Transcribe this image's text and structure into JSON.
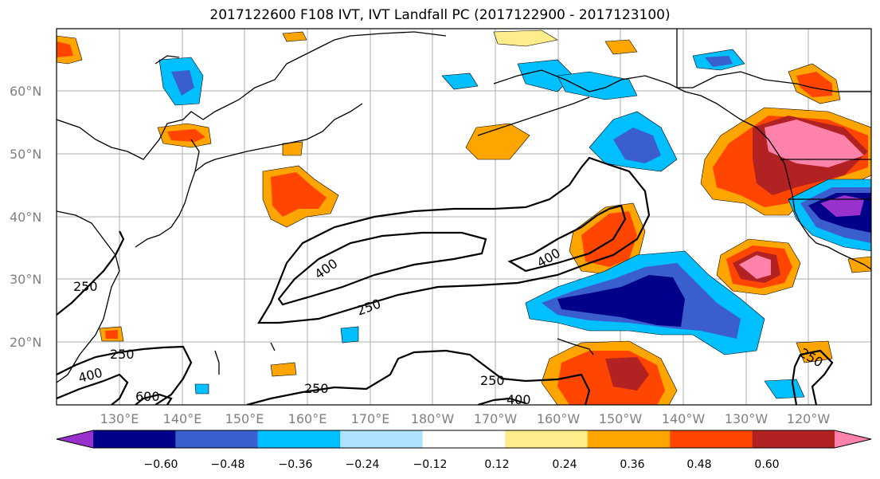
{
  "title": "2017122600 F108 IVT, IVT Landfall PC (2017122900 - 2017123100)",
  "map": {
    "lat_labels": [
      "60°N",
      "50°N",
      "40°N",
      "30°N",
      "20°N"
    ],
    "lon_labels": [
      "130°E",
      "140°E",
      "150°E",
      "160°E",
      "170°E",
      "180°W",
      "170°W",
      "160°W",
      "150°W",
      "140°W",
      "130°W",
      "120°W"
    ],
    "contour_levels": [
      "250",
      "400",
      "600"
    ],
    "contour_labels": [
      "400",
      "400",
      "250",
      "250",
      "250",
      "250",
      "400",
      "600",
      "250",
      "250",
      "400"
    ]
  },
  "colorbar": {
    "tick_labels": [
      "−0.60",
      "−0.48",
      "−0.36",
      "−0.24",
      "−0.12",
      "0.12",
      "0.24",
      "0.36",
      "0.48",
      "0.60"
    ],
    "colors": [
      "#9932cc",
      "#00008b",
      "#3a5fcd",
      "#00bfff",
      "#b0e2ff",
      "#ffffff",
      "#ffec8b",
      "#ffa500",
      "#ff4500",
      "#b22222",
      "#ff82ab"
    ]
  }
}
